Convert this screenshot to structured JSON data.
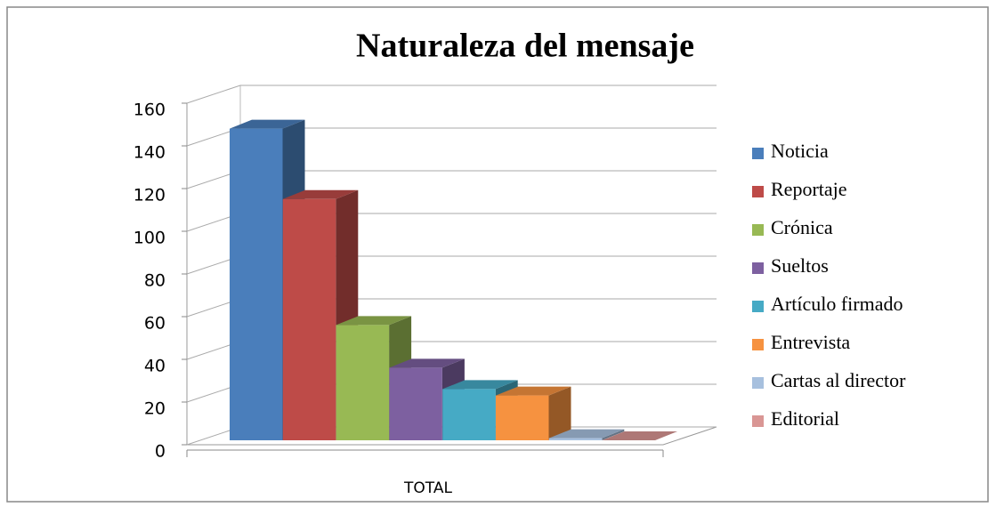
{
  "chart_data": {
    "type": "bar",
    "title": "Naturaleza del mensaje",
    "categories": [
      "TOTAL"
    ],
    "series": [
      {
        "name": "Noticia",
        "color": "#4a7ebb",
        "values": [
          146
        ]
      },
      {
        "name": "Reportaje",
        "color": "#be4b48",
        "values": [
          113
        ]
      },
      {
        "name": "Crónica",
        "color": "#98b954",
        "values": [
          54
        ]
      },
      {
        "name": "Sueltos",
        "color": "#7d60a0",
        "values": [
          34
        ]
      },
      {
        "name": "Artículo firmado",
        "color": "#46aac5",
        "values": [
          24
        ]
      },
      {
        "name": "Entrevista",
        "color": "#f69240",
        "values": [
          21
        ]
      },
      {
        "name": "Cartas al director",
        "color": "#a7c0de",
        "values": [
          1
        ]
      },
      {
        "name": "Editorial",
        "color": "#d99694",
        "values": [
          0
        ]
      }
    ],
    "ylim": [
      0,
      160
    ],
    "yticks": [
      0,
      20,
      40,
      60,
      80,
      100,
      120,
      140,
      160
    ],
    "grid": true,
    "legend": "right"
  }
}
